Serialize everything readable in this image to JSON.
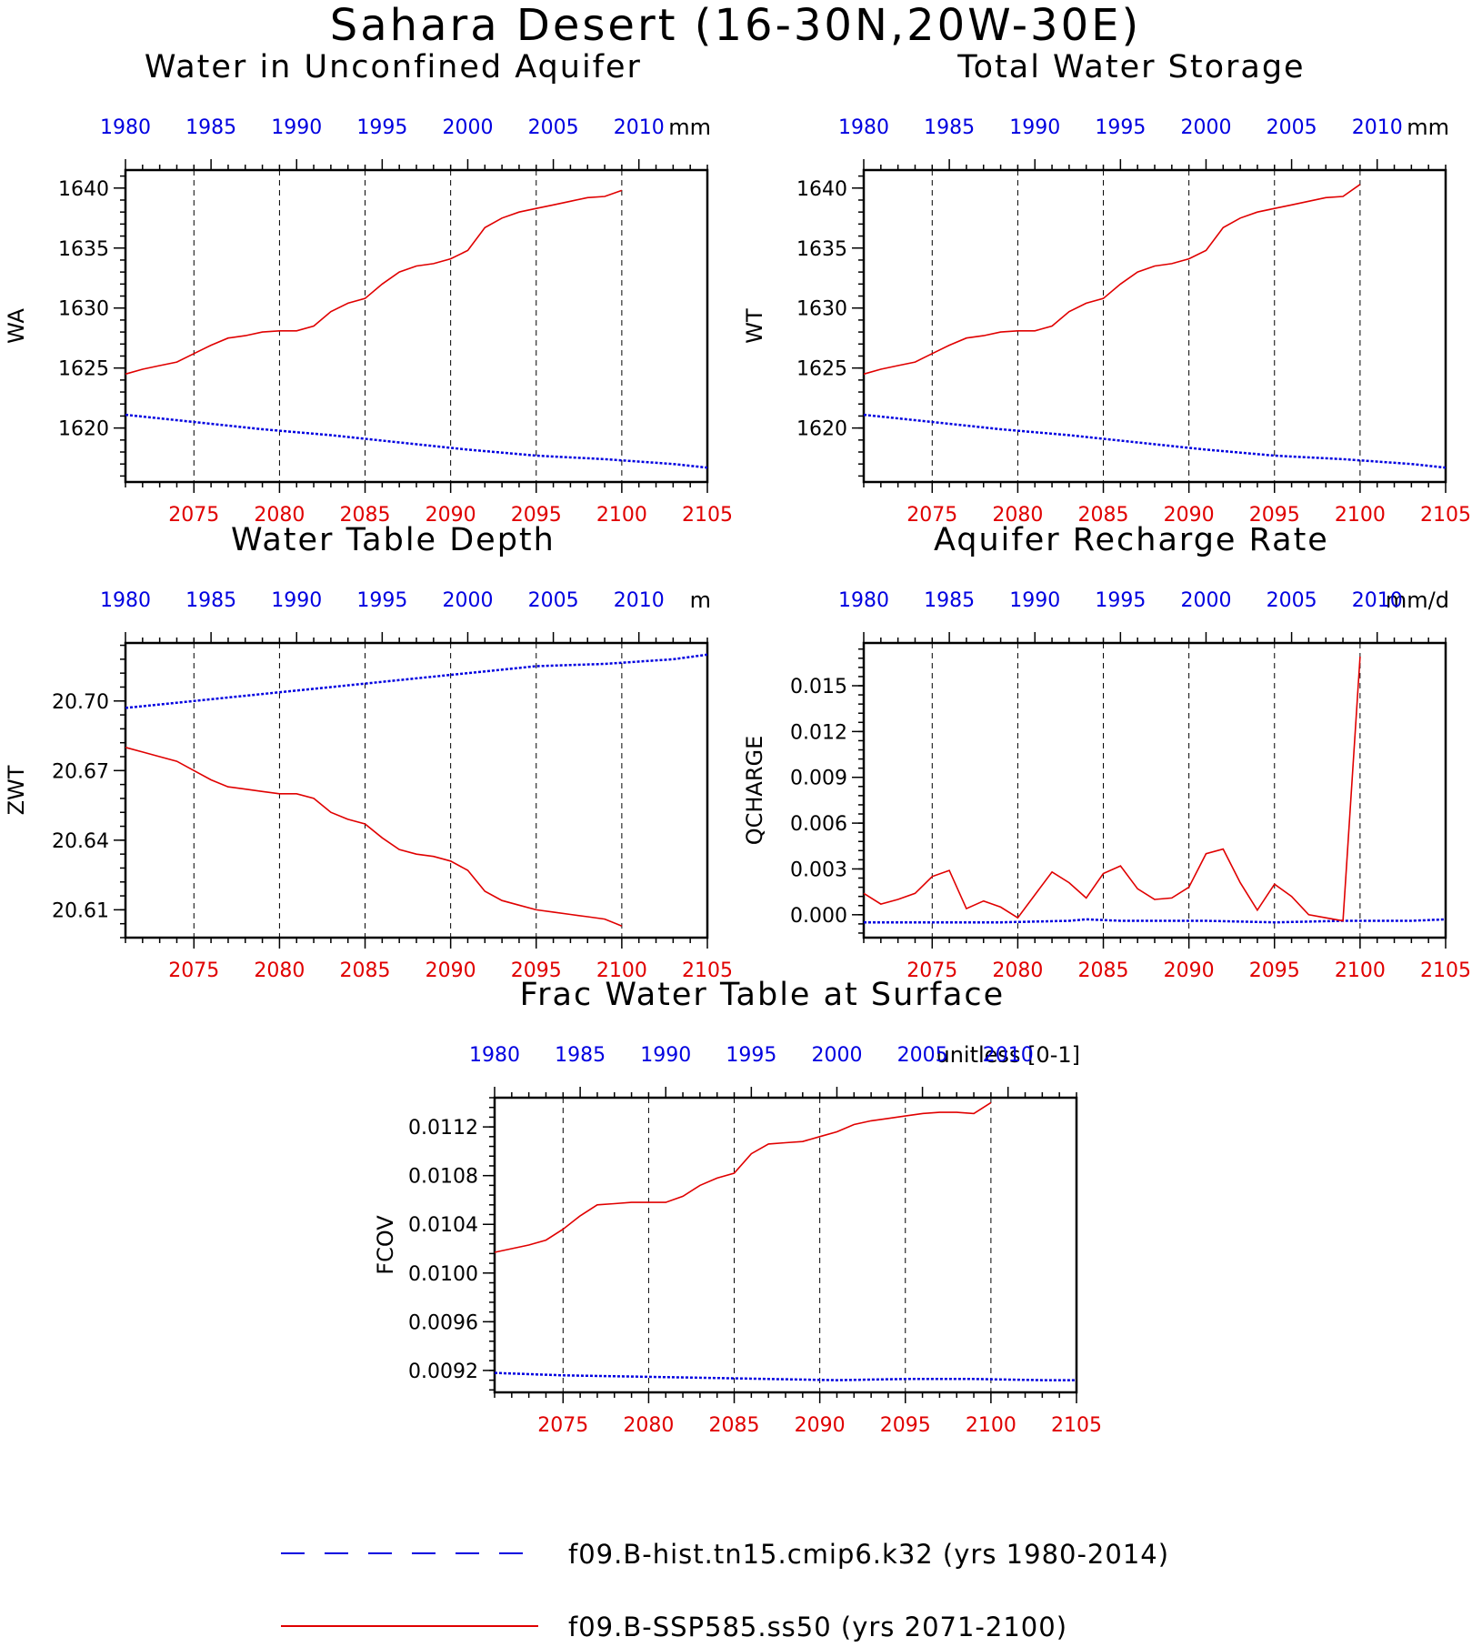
{
  "title": "Sahara Desert (16-30N,20W-30E)",
  "colors": {
    "hist": "#0000e0",
    "ssp": "#e00000",
    "axis": "#000000"
  },
  "legend": {
    "hist_label": "f09.B-hist.tn15.cmip6.k32 (yrs 1980-2014)",
    "ssp_label": "f09.B-SSP585.ss50 (yrs 2071-2100)"
  },
  "chart_data": [
    {
      "type": "line",
      "title": "Water in Unconfined Aquifer",
      "ylabel": "WA",
      "units": "mm",
      "ylim": [
        1615.5,
        1641.5
      ],
      "yticks": [
        1620,
        1625,
        1630,
        1635,
        1640
      ],
      "ytick_labels": [
        "1620",
        "1625",
        "1630",
        "1635",
        "1640"
      ],
      "top_axis": {
        "xlim": [
          1980,
          2014
        ],
        "ticks": [
          1980,
          1985,
          1990,
          1995,
          2000,
          2005,
          2010
        ]
      },
      "bottom_axis": {
        "xlim": [
          2071,
          2105
        ],
        "ticks": [
          2075,
          2080,
          2085,
          2090,
          2095,
          2100,
          2105
        ]
      },
      "series": [
        {
          "name": "f09.B-hist.tn15.cmip6.k32",
          "axis": "top",
          "x": [
            1980,
            1984,
            1988,
            1992,
            1996,
            2000,
            2004,
            2008,
            2012,
            2014
          ],
          "y": [
            1621.1,
            1620.5,
            1619.9,
            1619.4,
            1618.8,
            1618.2,
            1617.7,
            1617.4,
            1617.0,
            1616.7
          ]
        },
        {
          "name": "f09.B-SSP585.ss50",
          "axis": "bottom",
          "x": [
            2071,
            2072,
            2073,
            2074,
            2075,
            2076,
            2077,
            2078,
            2079,
            2080,
            2081,
            2082,
            2083,
            2084,
            2085,
            2086,
            2087,
            2088,
            2089,
            2090,
            2091,
            2092,
            2093,
            2094,
            2095,
            2096,
            2097,
            2098,
            2099,
            2100
          ],
          "y": [
            1624.5,
            1624.9,
            1625.2,
            1625.5,
            1626.2,
            1626.9,
            1627.5,
            1627.7,
            1628.0,
            1628.1,
            1628.1,
            1628.5,
            1629.7,
            1630.4,
            1630.8,
            1632.0,
            1633.0,
            1633.5,
            1633.7,
            1634.1,
            1634.8,
            1636.7,
            1637.5,
            1638.0,
            1638.3,
            1638.6,
            1638.9,
            1639.2,
            1639.3,
            1639.8
          ]
        }
      ]
    },
    {
      "type": "line",
      "title": "Total Water Storage",
      "ylabel": "WT",
      "units": "mm",
      "ylim": [
        1615.5,
        1641.5
      ],
      "yticks": [
        1620,
        1625,
        1630,
        1635,
        1640
      ],
      "ytick_labels": [
        "1620",
        "1625",
        "1630",
        "1635",
        "1640"
      ],
      "top_axis": {
        "xlim": [
          1980,
          2014
        ],
        "ticks": [
          1980,
          1985,
          1990,
          1995,
          2000,
          2005,
          2010
        ]
      },
      "bottom_axis": {
        "xlim": [
          2071,
          2105
        ],
        "ticks": [
          2075,
          2080,
          2085,
          2090,
          2095,
          2100,
          2105
        ]
      },
      "series": [
        {
          "name": "f09.B-hist.tn15.cmip6.k32",
          "axis": "top",
          "x": [
            1980,
            1984,
            1988,
            1992,
            1996,
            2000,
            2004,
            2008,
            2012,
            2014
          ],
          "y": [
            1621.1,
            1620.5,
            1619.9,
            1619.4,
            1618.8,
            1618.2,
            1617.7,
            1617.4,
            1617.0,
            1616.7
          ]
        },
        {
          "name": "f09.B-SSP585.ss50",
          "axis": "bottom",
          "x": [
            2071,
            2072,
            2073,
            2074,
            2075,
            2076,
            2077,
            2078,
            2079,
            2080,
            2081,
            2082,
            2083,
            2084,
            2085,
            2086,
            2087,
            2088,
            2089,
            2090,
            2091,
            2092,
            2093,
            2094,
            2095,
            2096,
            2097,
            2098,
            2099,
            2100
          ],
          "y": [
            1624.5,
            1624.9,
            1625.2,
            1625.5,
            1626.2,
            1626.9,
            1627.5,
            1627.7,
            1628.0,
            1628.1,
            1628.1,
            1628.5,
            1629.7,
            1630.4,
            1630.8,
            1632.0,
            1633.0,
            1633.5,
            1633.7,
            1634.1,
            1634.8,
            1636.7,
            1637.5,
            1638.0,
            1638.3,
            1638.6,
            1638.9,
            1639.2,
            1639.3,
            1640.3
          ]
        }
      ]
    },
    {
      "type": "line",
      "title": "Water Table Depth",
      "ylabel": "ZWT",
      "units": "m",
      "ylim": [
        20.598,
        20.725
      ],
      "yticks": [
        20.61,
        20.64,
        20.67,
        20.7
      ],
      "ytick_labels": [
        "20.61",
        "20.64",
        "20.67",
        "20.70"
      ],
      "top_axis": {
        "xlim": [
          1980,
          2014
        ],
        "ticks": [
          1980,
          1985,
          1990,
          1995,
          2000,
          2005,
          2010
        ]
      },
      "bottom_axis": {
        "xlim": [
          2071,
          2105
        ],
        "ticks": [
          2075,
          2080,
          2085,
          2090,
          2095,
          2100,
          2105
        ]
      },
      "series": [
        {
          "name": "f09.B-hist.tn15.cmip6.k32",
          "axis": "top",
          "x": [
            1980,
            1984,
            1988,
            1992,
            1996,
            2000,
            2004,
            2008,
            2012,
            2014
          ],
          "y": [
            20.697,
            20.7,
            20.703,
            20.706,
            20.709,
            20.712,
            20.715,
            20.716,
            20.718,
            20.72
          ]
        },
        {
          "name": "f09.B-SSP585.ss50",
          "axis": "bottom",
          "x": [
            2071,
            2072,
            2073,
            2074,
            2075,
            2076,
            2077,
            2078,
            2079,
            2080,
            2081,
            2082,
            2083,
            2084,
            2085,
            2086,
            2087,
            2088,
            2089,
            2090,
            2091,
            2092,
            2093,
            2094,
            2095,
            2096,
            2097,
            2098,
            2099,
            2100
          ],
          "y": [
            20.68,
            20.678,
            20.676,
            20.674,
            20.67,
            20.666,
            20.663,
            20.662,
            20.661,
            20.66,
            20.66,
            20.658,
            20.652,
            20.649,
            20.647,
            20.641,
            20.636,
            20.634,
            20.633,
            20.631,
            20.627,
            20.618,
            20.614,
            20.612,
            20.61,
            20.609,
            20.608,
            20.607,
            20.606,
            20.603
          ]
        }
      ]
    },
    {
      "type": "line",
      "title": "Aquifer Recharge Rate",
      "ylabel": "QCHARGE",
      "units": "mm/d",
      "ylim": [
        -0.0015,
        0.0178
      ],
      "yticks": [
        0,
        0.003,
        0.006,
        0.009,
        0.012,
        0.015
      ],
      "ytick_labels": [
        "0.000",
        "0.003",
        "0.006",
        "0.009",
        "0.012",
        "0.015"
      ],
      "top_axis": {
        "xlim": [
          1980,
          2014
        ],
        "ticks": [
          1980,
          1985,
          1990,
          1995,
          2000,
          2005,
          2010
        ]
      },
      "bottom_axis": {
        "xlim": [
          2071,
          2105
        ],
        "ticks": [
          2075,
          2080,
          2085,
          2090,
          2095,
          2100,
          2105
        ]
      },
      "series": [
        {
          "name": "f09.B-hist.tn15.cmip6.k32",
          "axis": "top",
          "x": [
            1980,
            1984,
            1988,
            1992,
            1993,
            1995,
            2000,
            2004,
            2008,
            2012,
            2014
          ],
          "y": [
            -0.0005,
            -0.0005,
            -0.0005,
            -0.0004,
            -0.0003,
            -0.0004,
            -0.0004,
            -0.0005,
            -0.0004,
            -0.0004,
            -0.0003
          ]
        },
        {
          "name": "f09.B-SSP585.ss50",
          "axis": "bottom",
          "x": [
            2071,
            2072,
            2073,
            2074,
            2075,
            2076,
            2077,
            2078,
            2079,
            2080,
            2081,
            2082,
            2083,
            2084,
            2085,
            2086,
            2087,
            2088,
            2089,
            2090,
            2091,
            2092,
            2093,
            2094,
            2095,
            2096,
            2097,
            2098,
            2099,
            2100
          ],
          "y": [
            0.0014,
            0.0007,
            0.001,
            0.0014,
            0.0025,
            0.0029,
            0.0004,
            0.0009,
            0.0005,
            -0.0002,
            0.0013,
            0.0028,
            0.0021,
            0.0011,
            0.0027,
            0.0032,
            0.0017,
            0.001,
            0.0011,
            0.0018,
            0.004,
            0.0043,
            0.0021,
            0.0003,
            0.002,
            0.0012,
            0.0,
            -0.0002,
            -0.0004,
            0.0169
          ]
        }
      ]
    },
    {
      "type": "line",
      "title": "Frac Water Table at Surface",
      "ylabel": "FCOV",
      "units": "unitless [0-1]",
      "ylim": [
        0.00902,
        0.01144
      ],
      "yticks": [
        0.0092,
        0.0096,
        0.01,
        0.0104,
        0.0108,
        0.0112
      ],
      "ytick_labels": [
        "0.0092",
        "0.0096",
        "0.0100",
        "0.0104",
        "0.0108",
        "0.0112"
      ],
      "top_axis": {
        "xlim": [
          1980,
          2014
        ],
        "ticks": [
          1980,
          1985,
          1990,
          1995,
          2000,
          2005,
          2010
        ]
      },
      "bottom_axis": {
        "xlim": [
          2071,
          2105
        ],
        "ticks": [
          2075,
          2080,
          2085,
          2090,
          2095,
          2100,
          2105
        ]
      },
      "series": [
        {
          "name": "f09.B-hist.tn15.cmip6.k32",
          "axis": "top",
          "x": [
            1980,
            1984,
            1988,
            1992,
            1996,
            2000,
            2004,
            2008,
            2012,
            2014
          ],
          "y": [
            0.00918,
            0.00916,
            0.00915,
            0.00914,
            0.00913,
            0.00912,
            0.00913,
            0.00913,
            0.00912,
            0.00912
          ]
        },
        {
          "name": "f09.B-SSP585.ss50",
          "axis": "bottom",
          "x": [
            2071,
            2072,
            2073,
            2074,
            2075,
            2076,
            2077,
            2078,
            2079,
            2080,
            2081,
            2082,
            2083,
            2084,
            2085,
            2086,
            2087,
            2088,
            2089,
            2090,
            2091,
            2092,
            2093,
            2094,
            2095,
            2096,
            2097,
            2098,
            2099,
            2100
          ],
          "y": [
            0.01017,
            0.0102,
            0.01023,
            0.01027,
            0.01036,
            0.01047,
            0.01056,
            0.01057,
            0.01058,
            0.01058,
            0.01058,
            0.01063,
            0.01072,
            0.01078,
            0.01082,
            0.01098,
            0.01106,
            0.01107,
            0.01108,
            0.01112,
            0.01116,
            0.01122,
            0.01125,
            0.01127,
            0.01129,
            0.01131,
            0.01132,
            0.01132,
            0.01131,
            0.0114
          ]
        }
      ]
    }
  ]
}
